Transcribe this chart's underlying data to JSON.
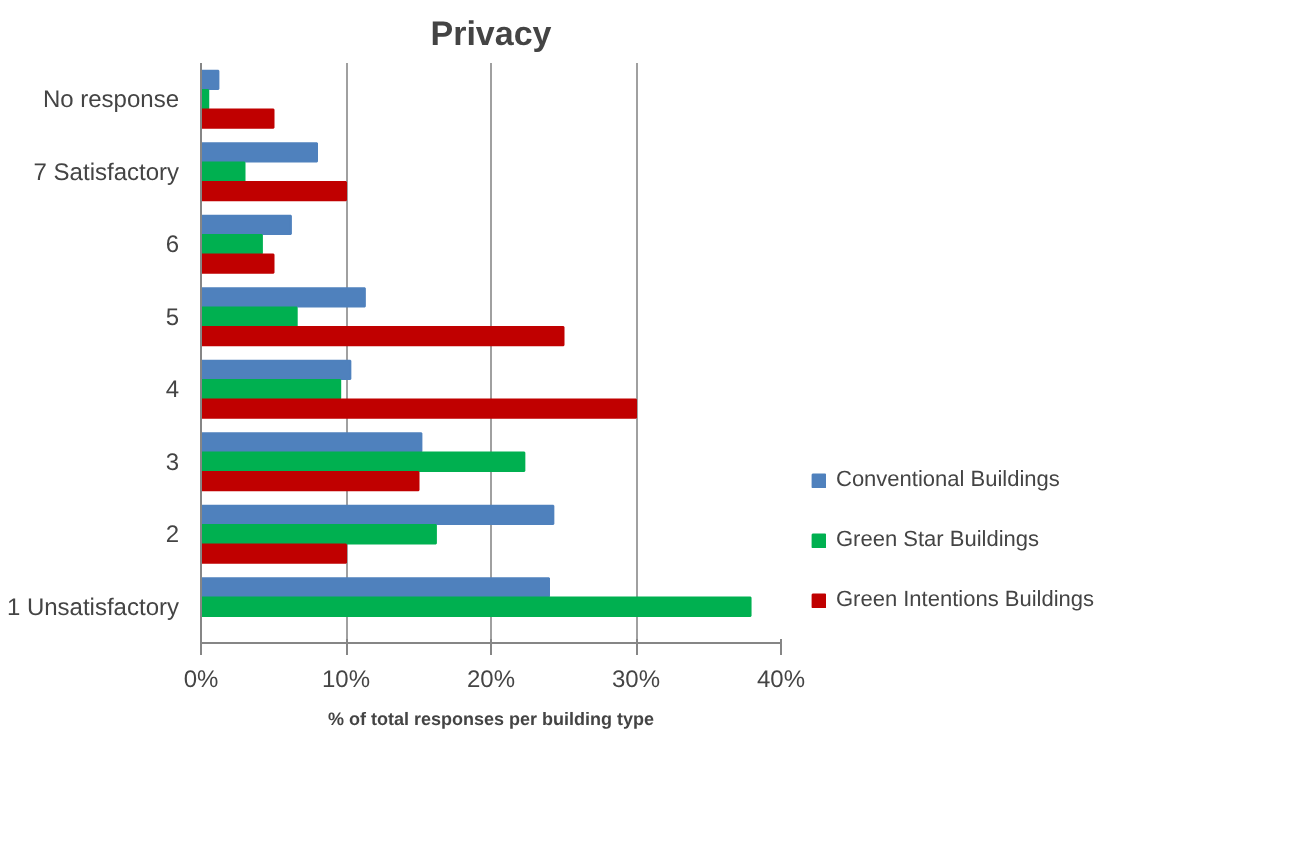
{
  "chart_data": {
    "type": "bar",
    "orientation": "horizontal",
    "title": "Privacy",
    "xlabel": "% of total responses per building type",
    "categories": [
      "No response",
      "7 Satisfactory",
      "6",
      "5",
      "4",
      "3",
      "2",
      "1 Unsatisfactory"
    ],
    "series": [
      {
        "name": "Conventional Buildings",
        "color": "#4f81bd",
        "values": [
          1.2,
          8.0,
          6.2,
          11.3,
          10.3,
          15.2,
          24.3,
          24.0
        ]
      },
      {
        "name": "Green Star Buildings",
        "color": "#00b050",
        "values": [
          0.5,
          3.0,
          4.2,
          6.6,
          9.6,
          22.3,
          16.2,
          37.9
        ]
      },
      {
        "name": "Green Intentions Buildings",
        "color": "#c00000",
        "values": [
          5.0,
          10.0,
          5.0,
          25.0,
          30.0,
          15.0,
          10.0,
          0
        ]
      }
    ],
    "xlim": [
      0,
      40
    ],
    "xticks": [
      {
        "value": 0,
        "label": "0%"
      },
      {
        "value": 10,
        "label": "10%"
      },
      {
        "value": 20,
        "label": "20%"
      },
      {
        "value": 30,
        "label": "30%"
      },
      {
        "value": 40,
        "label": "40%"
      }
    ],
    "grid": "x",
    "legend": "right"
  }
}
